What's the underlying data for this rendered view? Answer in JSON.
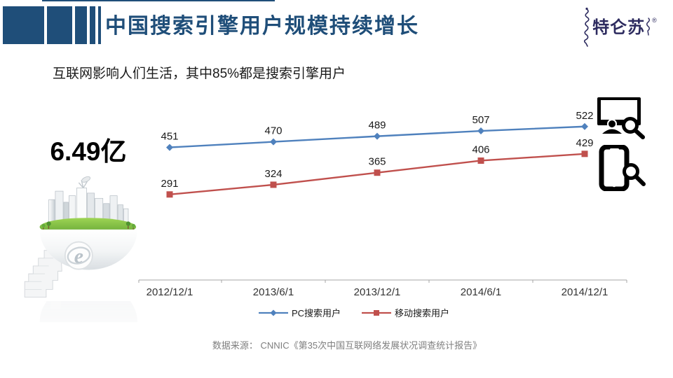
{
  "slide": {
    "title": "中国搜索引擎用户规模持续增长",
    "subtitle": "互联网影响人们生活，其中85%都是搜索引擎用户",
    "big_number": "6.49亿",
    "source": "数据来源： CNNIC《第35次中国互联网络发展状况调查统计报告》",
    "logo": {
      "text": "特仑苏",
      "reg": "®"
    }
  },
  "colors": {
    "accent_navy": "#1F4E79",
    "logo_navy": "#2D2B5F",
    "series_pc_blue": "#4F81BD",
    "series_mobile_red": "#C0504D",
    "axis_gray": "#A6A6A6",
    "label_black": "#1A1A1A",
    "source_gray": "#7F7F7F"
  },
  "icons": {
    "right_top": "pc-search-icon",
    "right_bottom": "mobile-search-icon",
    "left": "city-globe-illustration"
  },
  "chart_data": {
    "type": "line",
    "title": "",
    "xlabel": "",
    "ylabel": "",
    "x": [
      "2012/12/1",
      "2013/6/1",
      "2013/12/1",
      "2014/6/1",
      "2014/12/1"
    ],
    "series": [
      {
        "name": "PC搜索用户",
        "values": [
          451,
          470,
          489,
          507,
          522
        ],
        "color": "#4F81BD",
        "marker": "diamond"
      },
      {
        "name": "移动搜索用户",
        "values": [
          291,
          324,
          365,
          406,
          429
        ],
        "color": "#C0504D",
        "marker": "square"
      }
    ],
    "ylim": [
      0,
      600
    ],
    "grid": false,
    "data_labels": true,
    "legend_position": "bottom"
  }
}
